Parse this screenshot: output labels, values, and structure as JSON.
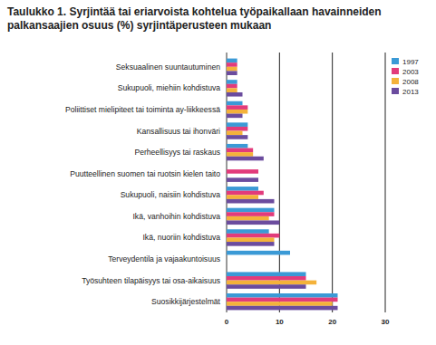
{
  "chart_data": {
    "type": "bar",
    "orientation": "horizontal",
    "title": "Taulukko 1. Syrjintää tai eriarvoista kohtelua työpaikallaan havainneiden palkansaajien osuus (%) syrjintäperusteen mukaan",
    "categories": [
      "Seksuaalinen suuntautuminen",
      "Sukupuoli, miehiin kohdistuva",
      "Poliittiset mielipiteet tai toiminta ay-liikkeessä",
      "Kansallisuus tai ihonväri",
      "Perheellisyys tai raskaus",
      "Puutteellinen suomen tai ruotsin kielen taito",
      "Sukupuoli, naisiin kohdistuva",
      "Ikä, vanhoihin kohdistuva",
      "Ikä, nuoriin kohdistuva",
      "Terveydentila ja vajaakuntoisuus",
      "Työsuhteen tilapäisyys tai osa-aikaisuus",
      "Suosikkijärjestelmät"
    ],
    "series": [
      {
        "name": "1997",
        "color": "#3b9ad6",
        "values": [
          2,
          2,
          3,
          4,
          4,
          null,
          6,
          9,
          8,
          12,
          15,
          21
        ]
      },
      {
        "name": "2003",
        "color": "#e23b7b",
        "values": [
          2,
          2,
          4,
          4,
          5,
          6,
          7,
          9,
          10,
          null,
          15,
          21
        ]
      },
      {
        "name": "2008",
        "color": "#f4b23a",
        "values": [
          2,
          2,
          4,
          3,
          5,
          null,
          6,
          8,
          9,
          null,
          17,
          20
        ]
      },
      {
        "name": "2013",
        "color": "#6b4c9e",
        "values": [
          2,
          3,
          3,
          4,
          7,
          6,
          9,
          10,
          9,
          null,
          15,
          21
        ]
      }
    ],
    "xlim": [
      0,
      30
    ],
    "xticks": [
      0,
      10,
      20,
      30
    ],
    "grid": true,
    "legend": "upper right"
  }
}
